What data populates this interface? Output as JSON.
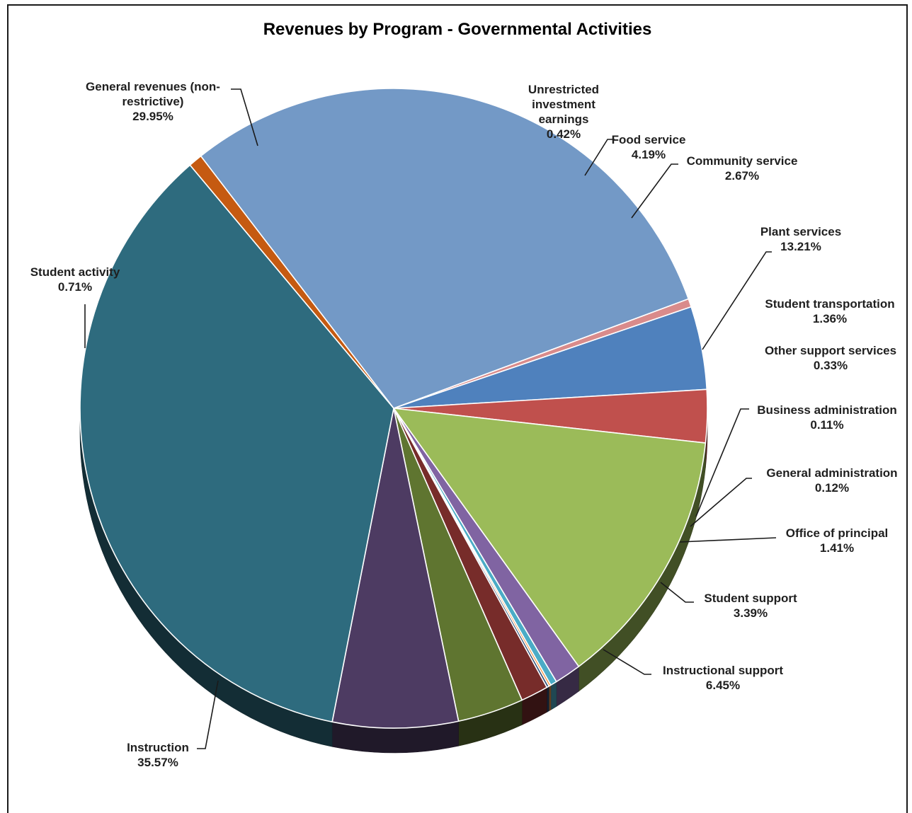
{
  "chart_data": {
    "type": "pie",
    "title": "Revenues by Program - Governmental Activities",
    "slices": [
      {
        "label": "Unrestricted investment earnings",
        "label_lines": [
          "Unrestricted",
          "investment",
          "earnings"
        ],
        "value": 0.42,
        "value_label": "0.42%",
        "color": "#D98B8B"
      },
      {
        "label": "Food service",
        "label_lines": [
          "Food service"
        ],
        "value": 4.19,
        "value_label": "4.19%",
        "color": "#4F81BD"
      },
      {
        "label": "Community service",
        "label_lines": [
          "Community service"
        ],
        "value": 2.67,
        "value_label": "2.67%",
        "color": "#C0504D"
      },
      {
        "label": "Plant services",
        "label_lines": [
          "Plant services"
        ],
        "value": 13.21,
        "value_label": "13.21%",
        "color": "#9BBB59"
      },
      {
        "label": "Student transportation",
        "label_lines": [
          "Student transportation"
        ],
        "value": 1.36,
        "value_label": "1.36%",
        "color": "#8064A2"
      },
      {
        "label": "Other support services",
        "label_lines": [
          "Other support services"
        ],
        "value": 0.33,
        "value_label": "0.33%",
        "color": "#4BACC6"
      },
      {
        "label": "Business administration",
        "label_lines": [
          "Business administration"
        ],
        "value": 0.11,
        "value_label": "0.11%",
        "color": "#F79646"
      },
      {
        "label": "General administration",
        "label_lines": [
          "General administration"
        ],
        "value": 0.12,
        "value_label": "0.12%",
        "color": "#2C4D75"
      },
      {
        "label": "Office of principal",
        "label_lines": [
          "Office of principal"
        ],
        "value": 1.41,
        "value_label": "1.41%",
        "color": "#772C2A"
      },
      {
        "label": "Student support",
        "label_lines": [
          "Student support"
        ],
        "value": 3.39,
        "value_label": "3.39%",
        "color": "#5F7530"
      },
      {
        "label": "Instructional support",
        "label_lines": [
          "Instructional support"
        ],
        "value": 6.45,
        "value_label": "6.45%",
        "color": "#4D3B62"
      },
      {
        "label": "Instruction",
        "label_lines": [
          "Instruction"
        ],
        "value": 35.57,
        "value_label": "35.57%",
        "color": "#2E6B7E"
      },
      {
        "label": "Student activity",
        "label_lines": [
          "Student activity"
        ],
        "value": 0.71,
        "value_label": "0.71%",
        "color": "#C55A11"
      },
      {
        "label": "General revenues (non-restrictive)",
        "label_lines": [
          "General revenues (non-",
          "restrictive)"
        ],
        "value": 29.95,
        "value_label": "29.95%",
        "color": "#7399C6"
      }
    ],
    "start_angle_deg": 70,
    "direction": "clockwise",
    "style": "3d-pie",
    "legend": "none"
  }
}
